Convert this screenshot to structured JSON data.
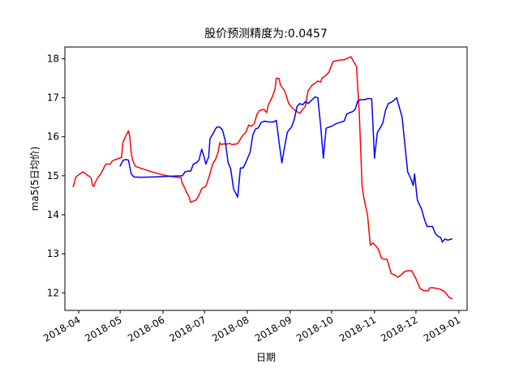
{
  "chart_data": {
    "type": "line",
    "title": "股价预测精度为:0.0457",
    "xlabel": "日期",
    "ylabel": "ma5(5日均价)",
    "xlim": [
      "2018-03-22",
      "2019-01-07"
    ],
    "ylim": [
      11.55,
      18.3
    ],
    "x_ticks": [
      "2018-04",
      "2018-05",
      "2018-06",
      "2018-07",
      "2018-08",
      "2018-09",
      "2018-10",
      "2018-11",
      "2018-12",
      "2019-01"
    ],
    "x_tick_labels": [
      "2018-04",
      "2018-05",
      "2018-06",
      "2018-07",
      "2018-08",
      "2018-09",
      "2018-10",
      "2018-11",
      "2018-12",
      "2019-01"
    ],
    "y_ticks": [
      12,
      13,
      14,
      15,
      16,
      17,
      18
    ],
    "y_tick_labels": [
      "12",
      "13",
      "14",
      "15",
      "16",
      "17",
      "18"
    ],
    "grid": false,
    "series": [
      {
        "color": "#ff0000",
        "points": [
          [
            "2018-03-28",
            14.72
          ],
          [
            "2018-03-30",
            14.97
          ],
          [
            "2018-04-02",
            15.05
          ],
          [
            "2018-04-04",
            15.1
          ],
          [
            "2018-04-06",
            15.05
          ],
          [
            "2018-04-10",
            14.95
          ],
          [
            "2018-04-11",
            14.75
          ],
          [
            "2018-04-12",
            14.73
          ],
          [
            "2018-04-13",
            14.83
          ],
          [
            "2018-04-15",
            14.96
          ],
          [
            "2018-04-17",
            15.05
          ],
          [
            "2018-04-20",
            15.26
          ],
          [
            "2018-04-21",
            15.3
          ],
          [
            "2018-04-24",
            15.3
          ],
          [
            "2018-04-25",
            15.37
          ],
          [
            "2018-04-27",
            15.41
          ],
          [
            "2018-05-02",
            15.47
          ],
          [
            "2018-05-03",
            15.85
          ],
          [
            "2018-05-05",
            16.02
          ],
          [
            "2018-05-07",
            16.15
          ],
          [
            "2018-05-08",
            16.0
          ],
          [
            "2018-05-09",
            15.58
          ],
          [
            "2018-05-10",
            15.4
          ],
          [
            "2018-05-12",
            15.24
          ],
          [
            "2018-05-17",
            15.18
          ],
          [
            "2018-05-24",
            15.1
          ],
          [
            "2018-05-31",
            15.03
          ],
          [
            "2018-06-07",
            14.98
          ],
          [
            "2018-06-14",
            14.95
          ],
          [
            "2018-06-15",
            14.8
          ],
          [
            "2018-06-17",
            14.67
          ],
          [
            "2018-06-18",
            14.58
          ],
          [
            "2018-06-20",
            14.45
          ],
          [
            "2018-06-21",
            14.32
          ],
          [
            "2018-06-23",
            14.35
          ],
          [
            "2018-06-25",
            14.38
          ],
          [
            "2018-06-27",
            14.5
          ],
          [
            "2018-06-29",
            14.67
          ],
          [
            "2018-07-02",
            14.73
          ],
          [
            "2018-07-05",
            15.05
          ],
          [
            "2018-07-07",
            15.31
          ],
          [
            "2018-07-09",
            15.42
          ],
          [
            "2018-07-11",
            15.62
          ],
          [
            "2018-07-12",
            15.85
          ],
          [
            "2018-07-13",
            15.8
          ],
          [
            "2018-07-15",
            15.82
          ],
          [
            "2018-07-17",
            15.81
          ],
          [
            "2018-07-19",
            15.83
          ],
          [
            "2018-07-21",
            15.8
          ],
          [
            "2018-07-25",
            15.82
          ],
          [
            "2018-07-28",
            16.0
          ],
          [
            "2018-07-31",
            16.12
          ],
          [
            "2018-08-02",
            16.3
          ],
          [
            "2018-08-04",
            16.27
          ],
          [
            "2018-08-06",
            16.33
          ],
          [
            "2018-08-08",
            16.58
          ],
          [
            "2018-08-10",
            16.68
          ],
          [
            "2018-08-13",
            16.7
          ],
          [
            "2018-08-15",
            16.62
          ],
          [
            "2018-08-16",
            16.8
          ],
          [
            "2018-08-19",
            17.02
          ],
          [
            "2018-08-21",
            17.21
          ],
          [
            "2018-08-22",
            17.5
          ],
          [
            "2018-08-24",
            17.49
          ],
          [
            "2018-08-25",
            17.32
          ],
          [
            "2018-08-28",
            17.18
          ],
          [
            "2018-08-31",
            16.85
          ],
          [
            "2018-09-03",
            16.72
          ],
          [
            "2018-09-05",
            16.67
          ],
          [
            "2018-09-08",
            16.6
          ],
          [
            "2018-09-10",
            16.7
          ],
          [
            "2018-09-12",
            16.78
          ],
          [
            "2018-09-14",
            17.18
          ],
          [
            "2018-09-17",
            17.33
          ],
          [
            "2018-09-19",
            17.37
          ],
          [
            "2018-09-21",
            17.43
          ],
          [
            "2018-09-23",
            17.4
          ],
          [
            "2018-09-24",
            17.5
          ],
          [
            "2018-09-27",
            17.58
          ],
          [
            "2018-09-29",
            17.65
          ],
          [
            "2018-10-02",
            17.93
          ],
          [
            "2018-10-05",
            17.95
          ],
          [
            "2018-10-08",
            17.97
          ],
          [
            "2018-10-10",
            17.97
          ],
          [
            "2018-10-13",
            18.02
          ],
          [
            "2018-10-15",
            18.05
          ],
          [
            "2018-10-17",
            17.92
          ],
          [
            "2018-10-19",
            17.8
          ],
          [
            "2018-10-21",
            16.6
          ],
          [
            "2018-10-23",
            14.76
          ],
          [
            "2018-10-24",
            14.5
          ],
          [
            "2018-10-27",
            13.98
          ],
          [
            "2018-10-28",
            13.6
          ],
          [
            "2018-10-29",
            13.22
          ],
          [
            "2018-10-31",
            13.28
          ],
          [
            "2018-11-02",
            13.2
          ],
          [
            "2018-11-04",
            13.11
          ],
          [
            "2018-11-06",
            12.89
          ],
          [
            "2018-11-08",
            12.86
          ],
          [
            "2018-11-10",
            12.86
          ],
          [
            "2018-11-11",
            12.75
          ],
          [
            "2018-11-13",
            12.5
          ],
          [
            "2018-11-16",
            12.45
          ],
          [
            "2018-11-18",
            12.4
          ],
          [
            "2018-11-20",
            12.45
          ],
          [
            "2018-11-23",
            12.55
          ],
          [
            "2018-11-26",
            12.57
          ],
          [
            "2018-11-28",
            12.56
          ],
          [
            "2018-12-01",
            12.36
          ],
          [
            "2018-12-04",
            12.11
          ],
          [
            "2018-12-07",
            12.05
          ],
          [
            "2018-12-10",
            12.06
          ],
          [
            "2018-12-11",
            12.13
          ],
          [
            "2018-12-14",
            12.13
          ],
          [
            "2018-12-16",
            12.11
          ],
          [
            "2018-12-18",
            12.1
          ],
          [
            "2018-12-21",
            12.05
          ],
          [
            "2018-12-23",
            11.98
          ],
          [
            "2018-12-25",
            11.88
          ],
          [
            "2018-12-27",
            11.85
          ]
        ]
      },
      {
        "color": "#0000ff",
        "points": [
          [
            "2018-05-01",
            15.25
          ],
          [
            "2018-05-03",
            15.39
          ],
          [
            "2018-05-05",
            15.42
          ],
          [
            "2018-05-07",
            15.4
          ],
          [
            "2018-05-09",
            15.05
          ],
          [
            "2018-05-11",
            14.97
          ],
          [
            "2018-05-16",
            14.96
          ],
          [
            "2018-05-25",
            14.97
          ],
          [
            "2018-06-07",
            14.99
          ],
          [
            "2018-06-15",
            15.0
          ],
          [
            "2018-06-17",
            15.1
          ],
          [
            "2018-06-19",
            15.12
          ],
          [
            "2018-06-21",
            15.12
          ],
          [
            "2018-06-23",
            15.3
          ],
          [
            "2018-06-25",
            15.33
          ],
          [
            "2018-06-27",
            15.4
          ],
          [
            "2018-06-29",
            15.68
          ],
          [
            "2018-07-01",
            15.45
          ],
          [
            "2018-07-02",
            15.3
          ],
          [
            "2018-07-04",
            15.48
          ],
          [
            "2018-07-05",
            15.95
          ],
          [
            "2018-07-07",
            16.07
          ],
          [
            "2018-07-09",
            16.2
          ],
          [
            "2018-07-10",
            16.25
          ],
          [
            "2018-07-12",
            16.25
          ],
          [
            "2018-07-14",
            16.18
          ],
          [
            "2018-07-16",
            15.9
          ],
          [
            "2018-07-18",
            15.35
          ],
          [
            "2018-07-20",
            15.17
          ],
          [
            "2018-07-22",
            14.67
          ],
          [
            "2018-07-25",
            14.45
          ],
          [
            "2018-07-27",
            15.2
          ],
          [
            "2018-07-29",
            15.2
          ],
          [
            "2018-07-31",
            15.35
          ],
          [
            "2018-08-03",
            15.6
          ],
          [
            "2018-08-05",
            16.05
          ],
          [
            "2018-08-07",
            16.2
          ],
          [
            "2018-08-09",
            16.23
          ],
          [
            "2018-08-11",
            16.37
          ],
          [
            "2018-08-14",
            16.4
          ],
          [
            "2018-08-16",
            16.38
          ],
          [
            "2018-08-20",
            16.38
          ],
          [
            "2018-08-22",
            16.42
          ],
          [
            "2018-08-24",
            15.85
          ],
          [
            "2018-08-26",
            15.33
          ],
          [
            "2018-08-28",
            15.75
          ],
          [
            "2018-08-30",
            16.12
          ],
          [
            "2018-09-02",
            16.25
          ],
          [
            "2018-09-04",
            16.45
          ],
          [
            "2018-09-06",
            16.78
          ],
          [
            "2018-09-08",
            16.85
          ],
          [
            "2018-09-10",
            16.82
          ],
          [
            "2018-09-12",
            16.9
          ],
          [
            "2018-09-14",
            16.85
          ],
          [
            "2018-09-16",
            16.92
          ],
          [
            "2018-09-19",
            17.02
          ],
          [
            "2018-09-21",
            17.0
          ],
          [
            "2018-09-23",
            16.3
          ],
          [
            "2018-09-25",
            15.45
          ],
          [
            "2018-09-27",
            16.22
          ],
          [
            "2018-10-01",
            16.27
          ],
          [
            "2018-10-04",
            16.33
          ],
          [
            "2018-10-08",
            16.38
          ],
          [
            "2018-10-10",
            16.4
          ],
          [
            "2018-10-12",
            16.58
          ],
          [
            "2018-10-14",
            16.62
          ],
          [
            "2018-10-16",
            16.64
          ],
          [
            "2018-10-18",
            16.7
          ],
          [
            "2018-10-20",
            16.92
          ],
          [
            "2018-10-22",
            16.95
          ],
          [
            "2018-10-25",
            16.95
          ],
          [
            "2018-10-27",
            16.98
          ],
          [
            "2018-10-30",
            16.97
          ],
          [
            "2018-11-01",
            15.45
          ],
          [
            "2018-11-03",
            16.1
          ],
          [
            "2018-11-05",
            16.22
          ],
          [
            "2018-11-07",
            16.35
          ],
          [
            "2018-11-09",
            16.68
          ],
          [
            "2018-11-11",
            16.85
          ],
          [
            "2018-11-13",
            16.88
          ],
          [
            "2018-11-15",
            16.93
          ],
          [
            "2018-11-17",
            17.0
          ],
          [
            "2018-11-19",
            16.75
          ],
          [
            "2018-11-21",
            16.5
          ],
          [
            "2018-11-23",
            15.8
          ],
          [
            "2018-11-25",
            15.1
          ],
          [
            "2018-11-27",
            14.95
          ],
          [
            "2018-11-29",
            14.75
          ],
          [
            "2018-11-30",
            15.05
          ],
          [
            "2018-12-02",
            14.38
          ],
          [
            "2018-12-05",
            14.15
          ],
          [
            "2018-12-07",
            13.9
          ],
          [
            "2018-12-09",
            13.7
          ],
          [
            "2018-12-11",
            13.7
          ],
          [
            "2018-12-13",
            13.7
          ],
          [
            "2018-12-15",
            13.52
          ],
          [
            "2018-12-17",
            13.45
          ],
          [
            "2018-12-19",
            13.41
          ],
          [
            "2018-12-20",
            13.3
          ],
          [
            "2018-12-22",
            13.38
          ],
          [
            "2018-12-24",
            13.35
          ],
          [
            "2018-12-27",
            13.38
          ]
        ]
      }
    ]
  }
}
